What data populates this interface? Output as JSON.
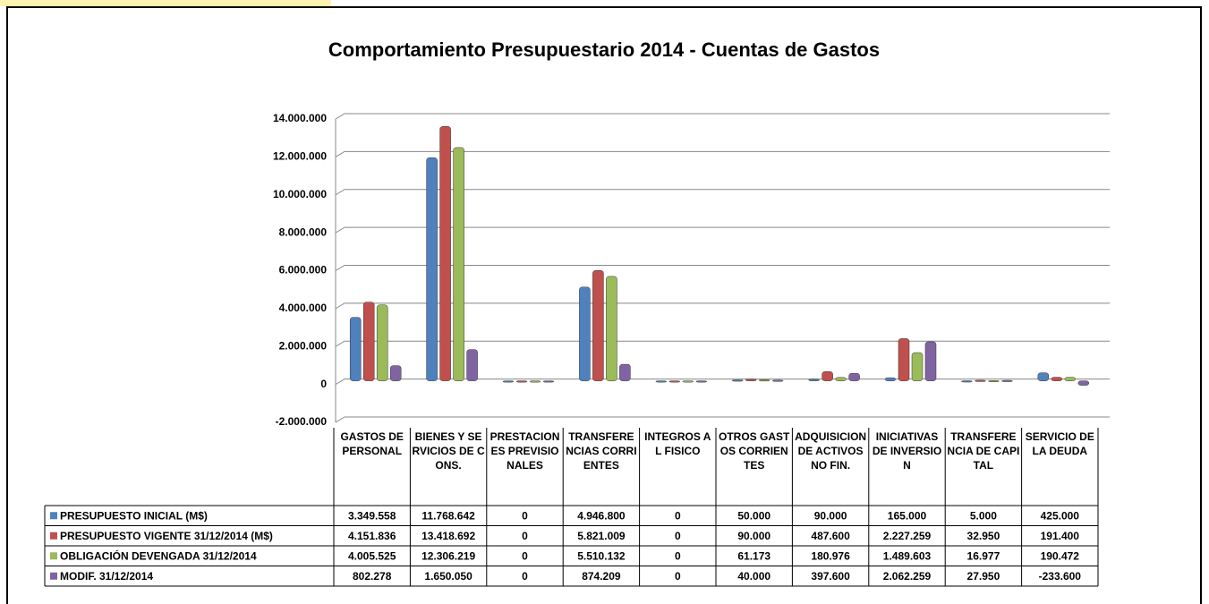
{
  "chart_data": {
    "type": "bar",
    "title": "Comportamiento Presupuestario 2014 - Cuentas de Gastos",
    "categories": [
      "GASTOS DE PERSONAL",
      "BIENES Y SERVICIOS DE CONS.",
      "PRESTACIONES PREVISIONALES",
      "TRANSFERENCIAS CORRIENTES",
      "INTEGROS AL FISICO",
      "OTROS GASTOS CORRIENTES",
      "ADQUISICION DE ACTIVOS NO FIN.",
      "INICIATIVAS DE INVERSION",
      "TRANSFERENCIA DE CAPITAL",
      "SERVICIO DE LA DEUDA"
    ],
    "series": [
      {
        "name": "PRESUPUESTO INICIAL (M$)",
        "color": "#4f81bd",
        "values": [
          3349558,
          11768642,
          0,
          4946800,
          0,
          50000,
          90000,
          165000,
          5000,
          425000
        ],
        "value_labels": [
          "3.349.558",
          "11.768.642",
          "0",
          "4.946.800",
          "0",
          "50.000",
          "90.000",
          "165.000",
          "5.000",
          "425.000"
        ]
      },
      {
        "name": "PRESUPUESTO VIGENTE 31/12/2014 (M$)",
        "color": "#c0504d",
        "values": [
          4151836,
          13418692,
          0,
          5821009,
          0,
          90000,
          487600,
          2227259,
          32950,
          191400
        ],
        "value_labels": [
          "4.151.836",
          "13.418.692",
          "0",
          "5.821.009",
          "0",
          "90.000",
          "487.600",
          "2.227.259",
          "32.950",
          "191.400"
        ]
      },
      {
        "name": "OBLIGACIÓN DEVENGADA 31/12/2014",
        "color": "#9bbb59",
        "values": [
          4005525,
          12306219,
          0,
          5510132,
          0,
          61173,
          180976,
          1489603,
          16977,
          190472
        ],
        "value_labels": [
          "4.005.525",
          "12.306.219",
          "0",
          "5.510.132",
          "0",
          "61.173",
          "180.976",
          "1.489.603",
          "16.977",
          "190.472"
        ]
      },
      {
        "name": "MODIF. 31/12/2014",
        "color": "#8064a2",
        "values": [
          802278,
          1650050,
          0,
          874209,
          0,
          40000,
          397600,
          2062259,
          27950,
          -233600
        ],
        "value_labels": [
          "802.278",
          "1.650.050",
          "0",
          "874.209",
          "0",
          "40.000",
          "397.600",
          "2.062.259",
          "27.950",
          "-233.600"
        ]
      }
    ],
    "ylim": [
      -2000000,
      14000000
    ],
    "yticks": [
      {
        "value": -2000000,
        "label": "-2.000.000"
      },
      0,
      {
        "value": 2000000,
        "label": "2.000.000"
      },
      {
        "value": 4000000,
        "label": "4.000.000"
      },
      {
        "value": 6000000,
        "label": "6.000.000"
      },
      {
        "value": 8000000,
        "label": "8.000.000"
      },
      {
        "value": 10000000,
        "label": "10.000.000"
      },
      {
        "value": 12000000,
        "label": "12.000.000"
      },
      {
        "value": 14000000,
        "label": "14.000.000"
      }
    ],
    "grid": true
  }
}
